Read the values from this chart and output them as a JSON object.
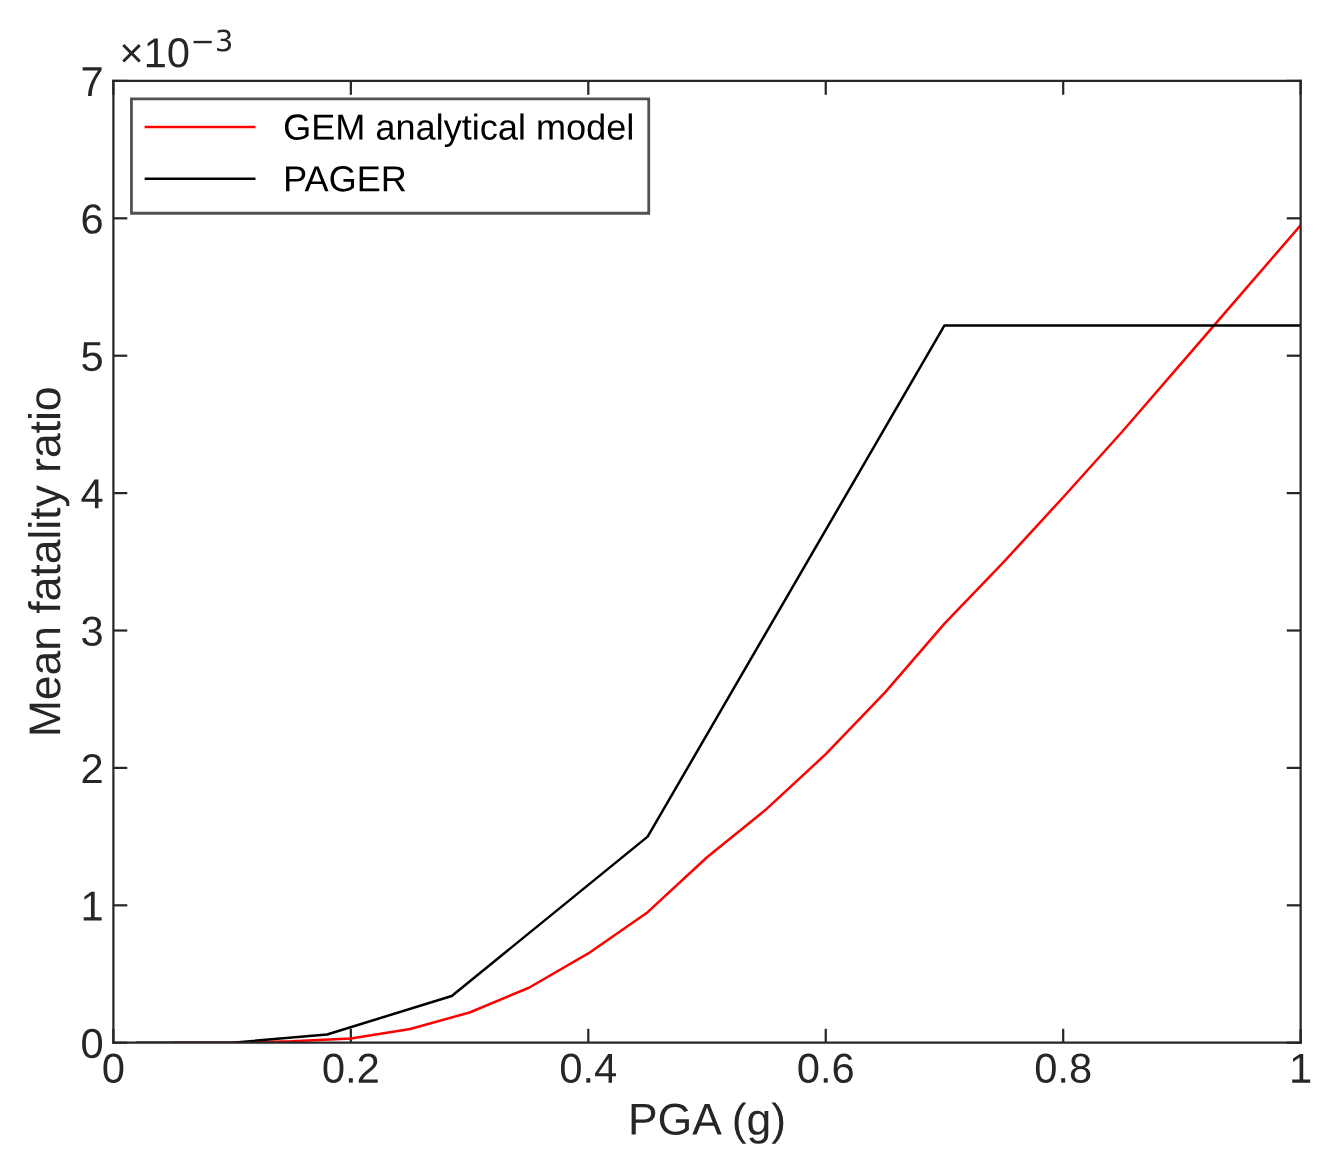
{
  "chart_data": {
    "type": "line",
    "xlabel": "PGA (g)",
    "ylabel": "Mean fatality ratio",
    "annotations": [
      "×10$^{−3}$"
    ],
    "xlim": [
      0,
      1
    ],
    "xticks": [
      0,
      0.2,
      0.4,
      0.6,
      0.8,
      1
    ],
    "ylim": [
      0,
      7
    ],
    "yticks": [
      0,
      1,
      2,
      3,
      4,
      5,
      6,
      7
    ],
    "grid": false,
    "legend": "top left",
    "series": [
      {
        "name": "GEM analytical model",
        "color": "#ff0000",
        "x": [
          0.05,
          0.1,
          0.15,
          0.2,
          0.25,
          0.3,
          0.35,
          0.4,
          0.45,
          0.5,
          0.55,
          0.6,
          0.65,
          0.7,
          0.75,
          0.8,
          0.85,
          0.9,
          0.95,
          1.0
        ],
        "values": [
          0,
          0,
          0.01,
          0.03,
          0.1,
          0.22,
          0.4,
          0.65,
          0.95,
          1.35,
          1.7,
          2.1,
          2.55,
          3.05,
          3.5,
          3.97,
          4.45,
          4.95,
          5.45,
          5.95
        ]
      },
      {
        "name": "PAGER",
        "color": "#000000",
        "x": [
          0.02,
          0.1,
          0.18,
          0.285,
          0.45,
          0.7,
          1.0
        ],
        "values": [
          0,
          0,
          0.06,
          0.34,
          1.5,
          5.22,
          5.22
        ]
      }
    ]
  }
}
